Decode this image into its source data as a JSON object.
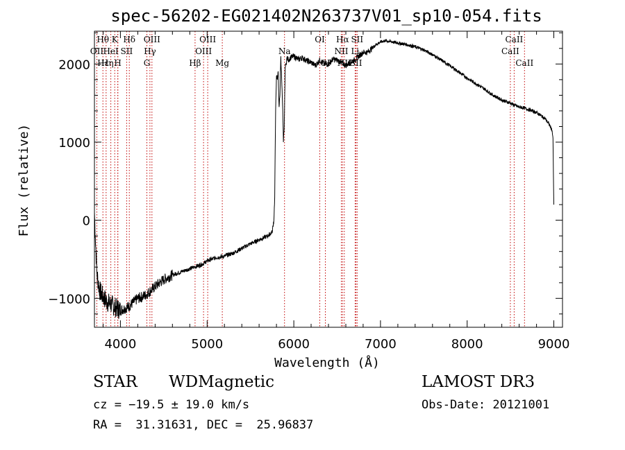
{
  "chart_data": {
    "type": "line",
    "title": "spec-56202-EG021402N263737V01_sp10-054.fits",
    "xlabel": "Wavelength (Å)",
    "ylabel": "Flux (relative)",
    "xlim": [
      3700,
      9100
    ],
    "ylim": [
      -1370,
      2420
    ],
    "xticks": [
      4000,
      5000,
      6000,
      7000,
      8000,
      9000
    ],
    "xtick_labels": [
      "4000",
      "5000",
      "6000",
      "7000",
      "8000",
      "9000"
    ],
    "yticks": [
      -1000,
      0,
      1000,
      2000
    ],
    "ytick_labels": [
      "−1000",
      "0",
      "1000",
      "2000"
    ],
    "series": [
      {
        "name": "flux",
        "x": [
          3700,
          3710,
          3730,
          3760,
          3800,
          3850,
          3900,
          3950,
          4000,
          4050,
          4100,
          4150,
          4200,
          4250,
          4300,
          4350,
          4400,
          4450,
          4500,
          4550,
          4600,
          4650,
          4700,
          4750,
          4800,
          4850,
          4900,
          4950,
          5000,
          5050,
          5100,
          5150,
          5200,
          5300,
          5400,
          5500,
          5600,
          5700,
          5750,
          5770,
          5780,
          5790,
          5800,
          5810,
          5820,
          5830,
          5840,
          5850,
          5860,
          5870,
          5880,
          5890,
          5900,
          5910,
          5920,
          5940,
          5960,
          6000,
          6050,
          6100,
          6150,
          6200,
          6250,
          6300,
          6350,
          6400,
          6450,
          6500,
          6550,
          6600,
          6650,
          6700,
          6750,
          6800,
          6850,
          6900,
          6950,
          7000,
          7050,
          7100,
          7150,
          7200,
          7300,
          7400,
          7500,
          7600,
          7700,
          7800,
          7900,
          8000,
          8100,
          8200,
          8300,
          8400,
          8500,
          8550,
          8600,
          8650,
          8700,
          8750,
          8800,
          8850,
          8900,
          8950,
          8980,
          8990,
          8995,
          9000
        ],
        "y": [
          100,
          -200,
          -700,
          -900,
          -980,
          -1050,
          -1080,
          -1120,
          -1150,
          -1130,
          -1100,
          -1050,
          -1000,
          -980,
          -950,
          -900,
          -850,
          -800,
          -760,
          -730,
          -700,
          -680,
          -660,
          -640,
          -620,
          -600,
          -580,
          -560,
          -520,
          -500,
          -480,
          -470,
          -460,
          -420,
          -360,
          -300,
          -250,
          -200,
          -150,
          0,
          300,
          1400,
          1850,
          1800,
          1900,
          1450,
          1600,
          2100,
          1800,
          1500,
          1000,
          1200,
          1950,
          2000,
          2080,
          2050,
          2080,
          2100,
          2060,
          2080,
          2040,
          2020,
          1980,
          2050,
          2000,
          2000,
          2060,
          2050,
          2020,
          1980,
          2020,
          2050,
          2100,
          2150,
          2150,
          2200,
          2250,
          2280,
          2300,
          2290,
          2280,
          2270,
          2250,
          2220,
          2180,
          2120,
          2050,
          1980,
          1900,
          1820,
          1750,
          1680,
          1600,
          1540,
          1500,
          1470,
          1450,
          1440,
          1420,
          1400,
          1380,
          1340,
          1300,
          1220,
          1150,
          1050,
          600,
          200
        ]
      }
    ],
    "line_markers": [
      {
        "label": "Hθ",
        "x": 3798
      },
      {
        "label": "OII",
        "x": 3727
      },
      {
        "label": "Hη",
        "x": 3835
      },
      {
        "label": "HeI",
        "x": 3889
      },
      {
        "label": "K",
        "x": 3934
      },
      {
        "label": "H",
        "x": 3969
      },
      {
        "label": "Hε",
        "x": 3970
      },
      {
        "label": "SII",
        "x": 4072
      },
      {
        "label": "Hδ",
        "x": 4102
      },
      {
        "label": "OIII",
        "x": 4363
      },
      {
        "label": "Hγ",
        "x": 4340
      },
      {
        "label": "G",
        "x": 4305
      },
      {
        "label": "Hβ",
        "x": 4861
      },
      {
        "label": "OIII",
        "x": 4959
      },
      {
        "label": "OIII",
        "x": 5007
      },
      {
        "label": "Mg",
        "x": 5175
      },
      {
        "label": "Na",
        "x": 5893
      },
      {
        "label": "OI",
        "x": 6300
      },
      {
        "label": "OI",
        "x": 6364
      },
      {
        "label": "Hα",
        "x": 6563
      },
      {
        "label": "NII",
        "x": 6548
      },
      {
        "label": "NII",
        "x": 6583
      },
      {
        "label": "SII",
        "x": 6717
      },
      {
        "label": "SII",
        "x": 6731
      },
      {
        "label": "Li",
        "x": 6708
      },
      {
        "label": "CaII",
        "x": 8498
      },
      {
        "label": "CaII",
        "x": 8542
      },
      {
        "label": "CaII",
        "x": 8662
      }
    ],
    "marker_label_text": [
      "Hθ",
      "K",
      "Hδ",
      "OIII",
      "OIII",
      "OII",
      "HeI",
      "SII",
      "Hγ",
      "OIII",
      "Hε",
      "Hη",
      "H",
      "G",
      "Hβ",
      "Mg",
      "Na",
      "OI",
      "Hα",
      "SII",
      "NII",
      "Li",
      "OI",
      "NII",
      "SII",
      "CaII",
      "CaII",
      "CaII"
    ]
  },
  "info": {
    "object_class": "STAR",
    "subclass": "WDMagnetic",
    "survey": "LAMOST DR3",
    "redshift": "cz = −19.5 ± 19.0 km/s",
    "obs_date": "Obs-Date: 20121001",
    "coordinates": "RA =  31.31631, DEC =  25.96837"
  }
}
